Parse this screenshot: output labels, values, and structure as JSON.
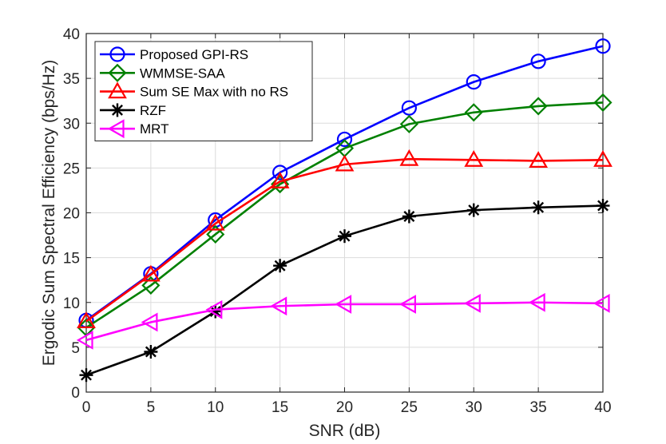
{
  "chart_data": {
    "type": "line",
    "title": "",
    "xlabel": "SNR (dB)",
    "ylabel": "Ergodic Sum Spectral Efficiency (bps/Hz)",
    "xlim": [
      0,
      40
    ],
    "ylim": [
      0,
      40
    ],
    "xticks": [
      "0",
      "5",
      "10",
      "15",
      "20",
      "25",
      "30",
      "35",
      "40"
    ],
    "yticks": [
      "0",
      "5",
      "10",
      "15",
      "20",
      "25",
      "30",
      "35",
      "40"
    ],
    "grid": true,
    "legend_position": "top-left",
    "x": [
      0,
      5,
      10,
      15,
      20,
      25,
      30,
      35,
      40
    ],
    "series": [
      {
        "name": "Proposed GPI-RS",
        "color": "#0000ff",
        "marker": "circle",
        "values": [
          8.0,
          13.2,
          19.2,
          24.5,
          28.2,
          31.7,
          34.6,
          36.9,
          38.6
        ]
      },
      {
        "name": "WMMSE-SAA",
        "color": "#008000",
        "marker": "diamond",
        "values": [
          7.2,
          11.9,
          17.6,
          23.2,
          27.2,
          29.9,
          31.2,
          31.9,
          32.3
        ]
      },
      {
        "name": "Sum SE Max with no RS",
        "color": "#ff0000",
        "marker": "triangle-up",
        "values": [
          7.9,
          13.1,
          18.8,
          23.5,
          25.4,
          26.0,
          25.9,
          25.8,
          25.9
        ]
      },
      {
        "name": "RZF",
        "color": "#000000",
        "marker": "asterisk",
        "values": [
          1.9,
          4.5,
          9.0,
          14.1,
          17.4,
          19.6,
          20.3,
          20.6,
          20.8
        ]
      },
      {
        "name": "MRT",
        "color": "#ff00ff",
        "marker": "triangle-left",
        "values": [
          5.8,
          7.8,
          9.2,
          9.6,
          9.8,
          9.8,
          9.9,
          10.0,
          9.9
        ]
      }
    ]
  }
}
